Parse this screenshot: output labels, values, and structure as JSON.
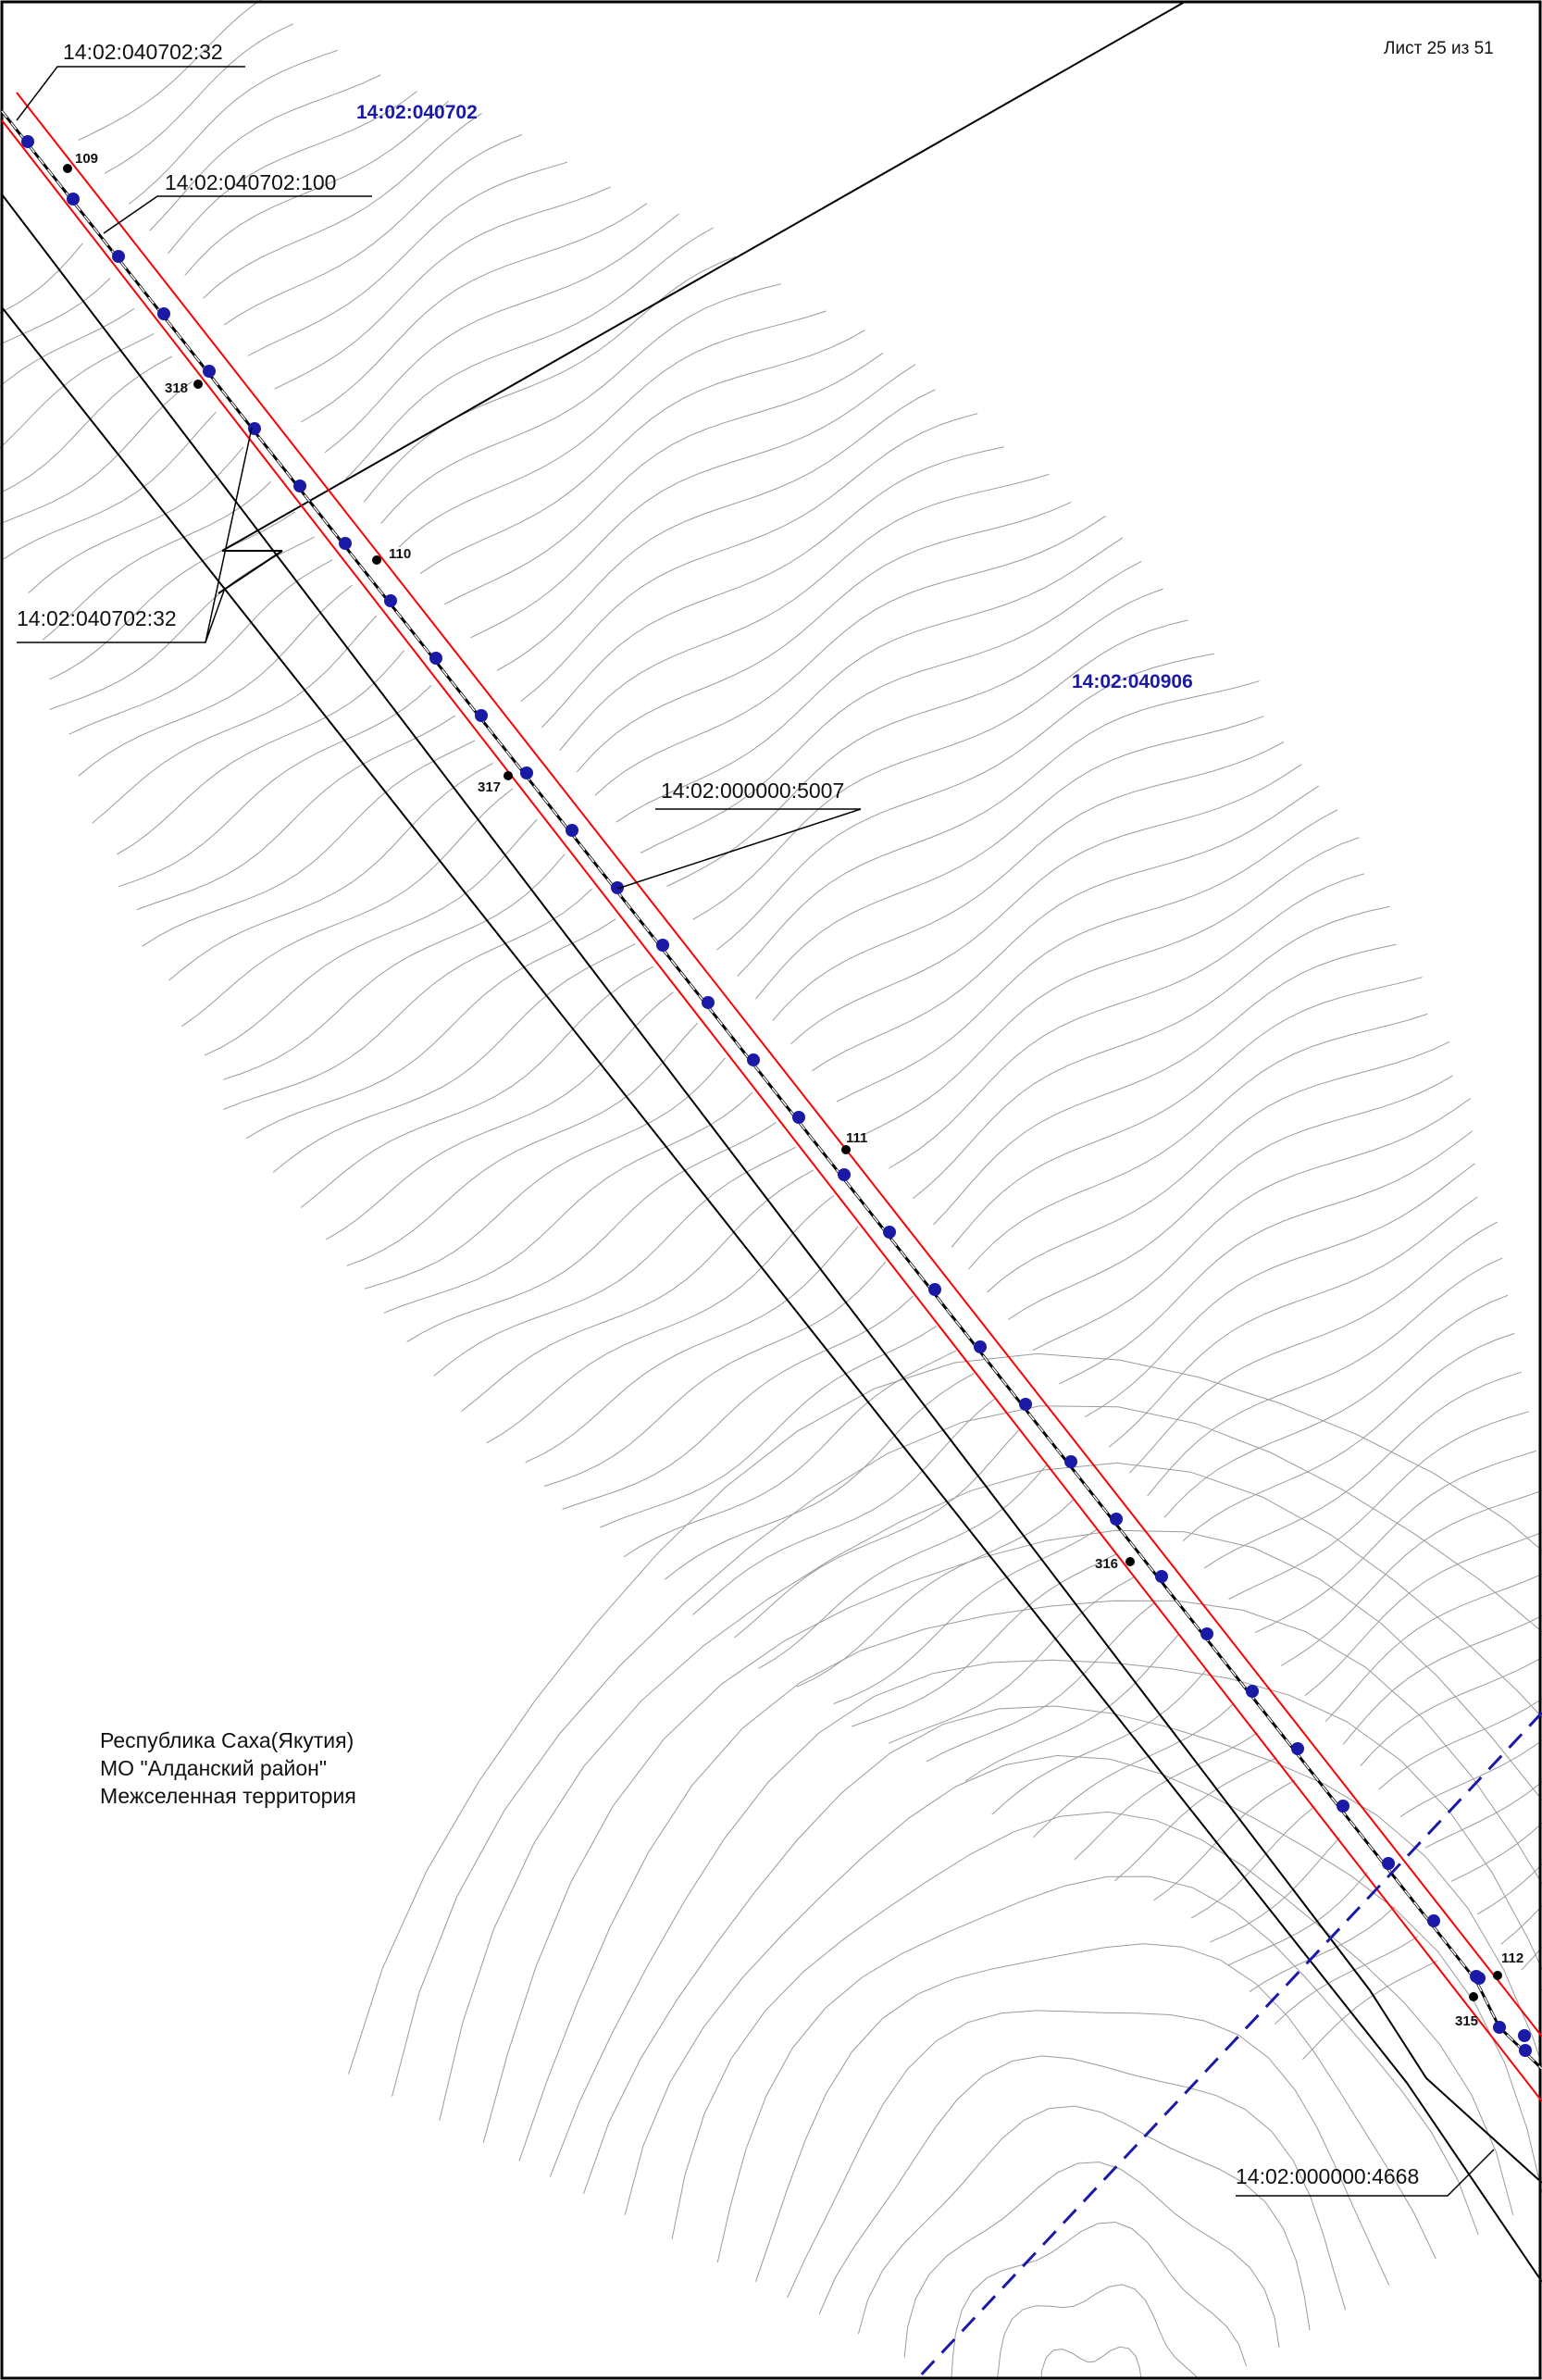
{
  "sheet_label": "Лист 25 из 51",
  "colors": {
    "contours": "#9a9a9a",
    "boundaries": "#000000",
    "zone": "#ff0000",
    "route": "#1a1aa6",
    "quarter_text": "#1a1aa6",
    "quarter_border": "#1a1aa6"
  },
  "quarters": {
    "q1": "14:02:040702",
    "q2": "14:02:040906"
  },
  "parcels": {
    "p1": "14:02:040702:32",
    "p2": "14:02:040702:100",
    "p3": "14:02:040702:32",
    "p4": "14:02:000000:5007",
    "p5": "14:02:000000:4668"
  },
  "points": {
    "p109": "109",
    "p110": "110",
    "p111": "111",
    "p112": "112",
    "p315": "315",
    "p316": "316",
    "p317": "317",
    "p318": "318"
  },
  "location": {
    "line1": "Республика Саха(Якутия)",
    "line2": "МО \"Алданский район\"",
    "line3": "Межселенная территория"
  }
}
